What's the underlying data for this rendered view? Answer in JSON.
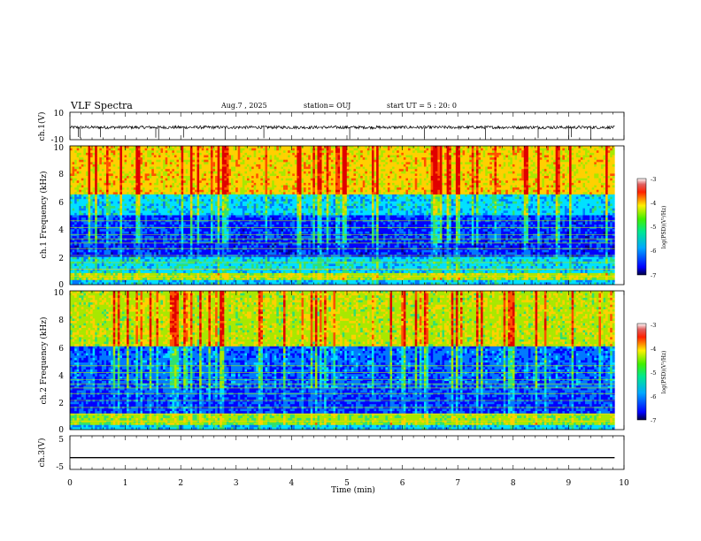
{
  "header": {
    "title": "VLF Spectra",
    "date": "Aug.7 , 2025",
    "station": "station= OUJ",
    "start": "start UT = 5 : 20: 0"
  },
  "chart_data": [
    {
      "type": "line",
      "name": "ch1-waveform",
      "ylabel": "ch.1(V)",
      "ylim": [
        -10,
        10
      ],
      "yticks": [
        "10",
        "-10"
      ],
      "xlim": [
        0,
        10
      ],
      "data_extent_min": [
        0,
        9.83
      ],
      "baseline_v": -1.0,
      "spikes_min": [
        0.15,
        0.18,
        0.55,
        1.55,
        1.6,
        2.05,
        2.8,
        3.5,
        5.05,
        6.4,
        7.5,
        8.45,
        9.0,
        9.05,
        9.4
      ]
    },
    {
      "type": "heatmap",
      "name": "ch1-spectrogram",
      "ylabel": "ch.1 Frequency (kHz)",
      "xlim": [
        0,
        10
      ],
      "ylim": [
        0,
        10
      ],
      "yticks": [
        "0",
        "2",
        "4",
        "6",
        "8",
        "10"
      ],
      "data_extent_min": [
        0,
        9.83
      ],
      "colorbar": {
        "label": "log(PSD)(V²/Hz)",
        "range": [
          -7,
          -3
        ],
        "ticks": [
          "-3",
          "-4",
          "-5",
          "-6",
          "-7"
        ]
      },
      "bands_khz": [
        {
          "from": 0,
          "to": 0.3,
          "log_psd": -5.6
        },
        {
          "from": 0.3,
          "to": 0.9,
          "log_psd": -4.6
        },
        {
          "from": 0.9,
          "to": 2.0,
          "log_psd": -5.5
        },
        {
          "from": 2.0,
          "to": 5.0,
          "log_psd": -6.3
        },
        {
          "from": 5.0,
          "to": 6.5,
          "log_psd": -5.6
        },
        {
          "from": 6.5,
          "to": 10,
          "log_psd": -4.3
        }
      ]
    },
    {
      "type": "heatmap",
      "name": "ch2-spectrogram",
      "ylabel": "ch.2 Frequency (kHz)",
      "xlim": [
        0,
        10
      ],
      "ylim": [
        0,
        10
      ],
      "yticks": [
        "0",
        "2",
        "4",
        "6",
        "8",
        "10"
      ],
      "data_extent_min": [
        0,
        9.83
      ],
      "colorbar": {
        "label": "log(PSD)(V²/Hz)",
        "range": [
          -7,
          -3
        ],
        "ticks": [
          "-3",
          "-4",
          "-5",
          "-6",
          "-7"
        ]
      },
      "bands_khz": [
        {
          "from": 0,
          "to": 0.3,
          "log_psd": -5.6
        },
        {
          "from": 0.3,
          "to": 1.2,
          "log_psd": -4.7
        },
        {
          "from": 1.2,
          "to": 2.5,
          "log_psd": -6.2
        },
        {
          "from": 2.5,
          "to": 6.0,
          "log_psd": -6.1
        },
        {
          "from": 6.0,
          "to": 10,
          "log_psd": -4.6
        }
      ]
    },
    {
      "type": "line",
      "name": "ch3-waveform",
      "ylabel": "ch.3(V)",
      "ylim": [
        -5,
        5
      ],
      "yticks": [
        "5",
        "-5"
      ],
      "xlim": [
        0,
        10
      ],
      "data_extent_min": [
        0,
        9.83
      ],
      "baseline_v": -1.5
    }
  ],
  "x_axis": {
    "label": "Time (min)",
    "ticks": [
      "0",
      "1",
      "2",
      "3",
      "4",
      "5",
      "6",
      "7",
      "8",
      "9",
      "10"
    ]
  },
  "colors": {
    "colormap": [
      "#00008b",
      "#0000ff",
      "#0078ff",
      "#00e0ff",
      "#30e070",
      "#a8e800",
      "#ffd000",
      "#ff5000",
      "#e00000",
      "#f4cccc"
    ],
    "trace": "#000000"
  }
}
